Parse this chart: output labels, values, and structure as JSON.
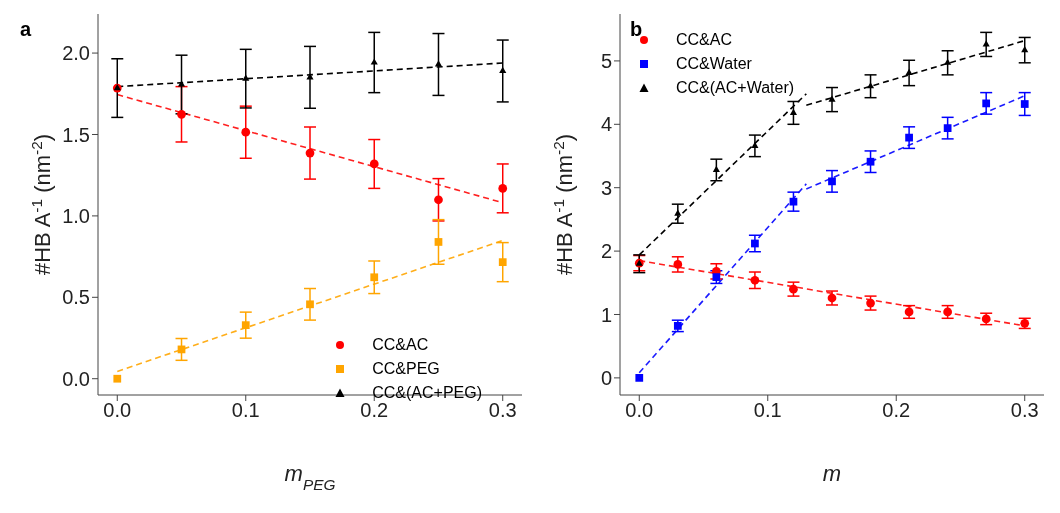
{
  "chart_data": [
    {
      "type": "scatter",
      "title": "a",
      "xlabel": "m$_{PEG}$",
      "ylabel": "#HB A$^{-1}$ (nm$^{-2}$)",
      "xlim": [
        -0.015,
        0.315
      ],
      "ylim": [
        -0.1,
        2.24
      ],
      "xticks": [
        {
          "value": 0,
          "label": "0.0"
        },
        0.1,
        0.2,
        0.3
      ],
      "yticks": [
        {
          "value": 0,
          "label": "0.0"
        },
        0.5,
        {
          "value": 1,
          "label": "1.0"
        },
        1.5,
        {
          "value": 2,
          "label": "2.0"
        }
      ],
      "grid": false,
      "legend": "bottom right",
      "series": [
        {
          "type": "line",
          "color": "#ff2020",
          "x": [
            0,
            0.3
          ],
          "values": [
            1.745,
            1.081
          ],
          "line_style": "dashed",
          "marker": "none"
        },
        {
          "type": "line",
          "color": "#ffae1a",
          "x": [
            0,
            0.3
          ],
          "values": [
            0.045,
            0.849
          ],
          "line_style": "dashed",
          "marker": "none"
        },
        {
          "type": "line",
          "color": "#000000",
          "x": [
            0,
            0.3
          ],
          "values": [
            1.794,
            1.939
          ],
          "line_style": "dashed",
          "marker": "none"
        },
        {
          "name": "CC&AC",
          "color": "#ff0000",
          "marker": "circle",
          "x": [
            0,
            0.05,
            0.1,
            0.15,
            0.2,
            0.25,
            0.3
          ],
          "values": [
            1.785,
            1.624,
            1.514,
            1.386,
            1.319,
            1.099,
            1.169
          ],
          "errors": [
            null,
            0.17,
            0.16,
            0.16,
            0.15,
            0.13,
            0.15
          ]
        },
        {
          "name": "CC&PEG",
          "color": "#ffa500",
          "marker": "square",
          "x": [
            0,
            0.05,
            0.1,
            0.15,
            0.2,
            0.25,
            0.3
          ],
          "values": [
            0,
            0.18,
            0.329,
            0.457,
            0.623,
            0.84,
            0.716
          ],
          "errors": [
            null,
            0.067,
            0.08,
            0.097,
            0.1,
            0.137,
            0.12
          ]
        },
        {
          "name": "CC&(AC+PEG)",
          "color": "#000000",
          "marker": "triangle",
          "x": [
            0,
            0.05,
            0.1,
            0.15,
            0.2,
            0.25,
            0.3
          ],
          "values": [
            1.785,
            1.807,
            1.843,
            1.851,
            1.942,
            1.93,
            1.89
          ],
          "errors": [
            0.18,
            0.18,
            0.18,
            0.19,
            0.185,
            0.19,
            0.19
          ]
        }
      ]
    },
    {
      "type": "scatter",
      "title": "b",
      "xlabel": "m",
      "ylabel": "#HB A$^{-1}$ (nm$^{-2}$)",
      "xlim": [
        -0.015,
        0.315
      ],
      "ylim": [
        -0.27,
        5.74
      ],
      "xticks": [
        {
          "value": 0,
          "label": "0.0"
        },
        0.1,
        0.2,
        0.3
      ],
      "yticks": [
        0,
        1,
        2,
        3,
        4,
        5
      ],
      "grid": false,
      "legend": "top left",
      "series": [
        {
          "type": "line",
          "color": "#000000",
          "x": [
            0,
            0.13
          ],
          "values": [
            1.94,
            4.48
          ],
          "line_style": "dashed",
          "marker": "none"
        },
        {
          "type": "line",
          "color": "#000000",
          "x": [
            0.13,
            0.3
          ],
          "values": [
            4.3,
            5.32
          ],
          "line_style": "dashed",
          "marker": "none"
        },
        {
          "type": "line",
          "color": "#1a1aff",
          "x": [
            0,
            0.13
          ],
          "values": [
            0.08,
            3.06
          ],
          "line_style": "dashed",
          "marker": "none"
        },
        {
          "type": "line",
          "color": "#1a1aff",
          "x": [
            0.13,
            0.3
          ],
          "values": [
            2.98,
            4.45
          ],
          "line_style": "dashed",
          "marker": "none"
        },
        {
          "type": "line",
          "color": "#ff2020",
          "x": [
            0,
            0.3
          ],
          "values": [
            1.85,
            0.82
          ],
          "line_style": "dashed",
          "marker": "none"
        },
        {
          "name": "CC&AC",
          "color": "#ff0000",
          "marker": "circle",
          "x": [
            0,
            0.03,
            0.06,
            0.09,
            0.12,
            0.15,
            0.18,
            0.21,
            0.24,
            0.27,
            0.3
          ],
          "values": [
            1.81,
            1.79,
            1.68,
            1.54,
            1.4,
            1.26,
            1.18,
            1.04,
            1.04,
            0.93,
            0.86
          ],
          "errors": [
            0.12,
            0.12,
            0.12,
            0.13,
            0.11,
            0.11,
            0.11,
            0.1,
            0.1,
            0.09,
            0.08
          ]
        },
        {
          "name": "CC&Water",
          "color": "#0000ff",
          "marker": "square",
          "x": [
            0,
            0.03,
            0.06,
            0.09,
            0.12,
            0.15,
            0.18,
            0.21,
            0.24,
            0.27,
            0.3
          ],
          "values": [
            0,
            0.82,
            1.59,
            2.12,
            2.78,
            3.1,
            3.41,
            3.79,
            3.94,
            4.33,
            4.32
          ],
          "errors": [
            null,
            0.09,
            0.1,
            0.13,
            0.15,
            0.17,
            0.17,
            0.17,
            0.17,
            0.17,
            0.18
          ]
        },
        {
          "name": "CC&(AC+Water)",
          "color": "#000000",
          "marker": "triangle",
          "x": [
            0,
            0.03,
            0.06,
            0.09,
            0.12,
            0.15,
            0.18,
            0.21,
            0.24,
            0.27,
            0.3
          ],
          "values": [
            1.8,
            2.59,
            3.28,
            3.66,
            4.18,
            4.39,
            4.6,
            4.81,
            4.97,
            5.26,
            5.17
          ],
          "errors": [
            0.14,
            0.15,
            0.17,
            0.17,
            0.18,
            0.19,
            0.18,
            0.2,
            0.19,
            0.19,
            0.2
          ]
        }
      ]
    }
  ]
}
